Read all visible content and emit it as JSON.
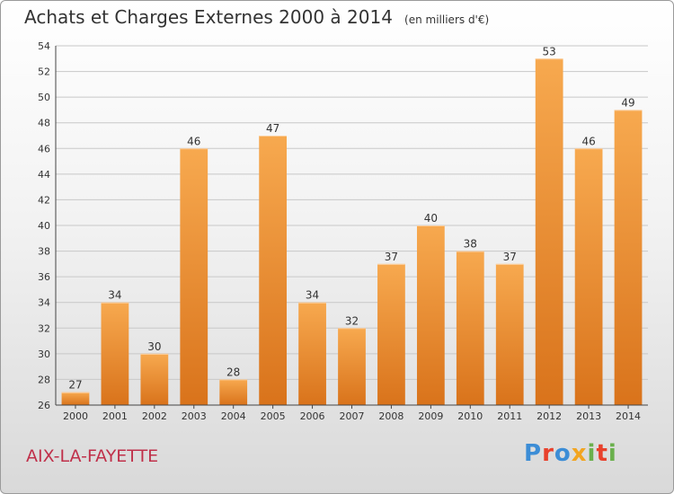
{
  "header": {
    "title": "Achats et Charges Externes 2000 à 2014",
    "unit": "(en milliers d'€)"
  },
  "footer": {
    "place": "AIX-LA-FAYETTE",
    "logo_text": "Proxiti",
    "logo_colors": [
      "#3c8dd6",
      "#e8412c",
      "#3c8dd6",
      "#f2a521",
      "#6ab04c",
      "#e8412c",
      "#6ab04c"
    ]
  },
  "colors": {
    "bar_light": "#f7a94f",
    "bar_dark": "#d9731b",
    "grid": "#c8c8c8",
    "axis": "#444444",
    "text": "#333333"
  },
  "chart_data": {
    "type": "bar",
    "title": "Achats et Charges Externes 2000 à 2014",
    "subtitle": "(en milliers d'€)",
    "categories": [
      "2000",
      "2001",
      "2002",
      "2003",
      "2004",
      "2005",
      "2006",
      "2007",
      "2008",
      "2009",
      "2010",
      "2011",
      "2012",
      "2013",
      "2014"
    ],
    "values": [
      27,
      34,
      30,
      46,
      28,
      47,
      34,
      32,
      37,
      40,
      38,
      37,
      53,
      46,
      49
    ],
    "ylim": [
      26,
      54
    ],
    "yticks": [
      26,
      28,
      30,
      32,
      34,
      36,
      38,
      40,
      42,
      44,
      46,
      48,
      50,
      52,
      54
    ],
    "grid": true,
    "data_labels": true,
    "xlabel": "",
    "ylabel": ""
  }
}
